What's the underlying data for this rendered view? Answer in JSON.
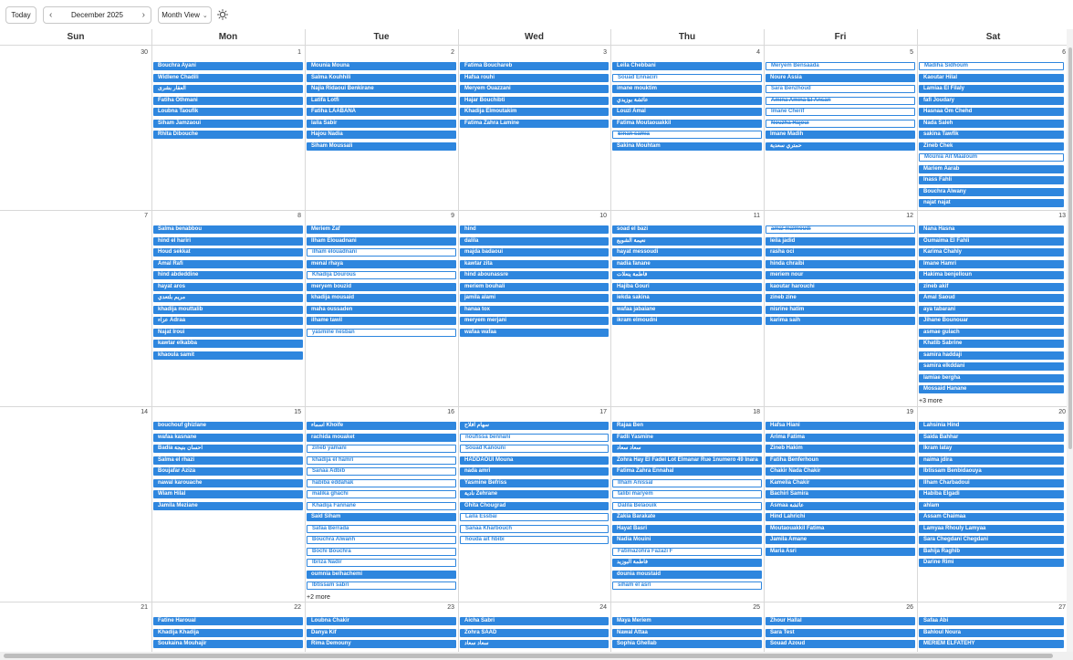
{
  "toolbar": {
    "today_label": "Today",
    "month_label": "December 2025",
    "prev_icon": "chevron-left-icon",
    "next_icon": "chevron-right-icon",
    "view_label": "Month View",
    "view_dropdown_icon": "chevron-down-icon",
    "theme_icon": "sun-icon"
  },
  "colors": {
    "event": "#2e86de",
    "border": "#d8d8d8"
  },
  "weekdays": [
    "Sun",
    "Mon",
    "Tue",
    "Wed",
    "Thu",
    "Fri",
    "Sat"
  ],
  "weeks": [
    {
      "days": [
        {
          "num": "30",
          "events": []
        },
        {
          "num": "1",
          "events": [
            {
              "t": "Bouchra Ayani"
            },
            {
              "t": "Widlene Chadili"
            },
            {
              "t": "العقار بشرى"
            },
            {
              "t": "Fatiha Othmani"
            },
            {
              "t": "Loubna Taoufik"
            },
            {
              "t": "Siham Jamzaoui"
            },
            {
              "t": "Rhita Dibouche"
            }
          ]
        },
        {
          "num": "2",
          "events": [
            {
              "t": "Mounia Mouna"
            },
            {
              "t": "Salma Kouhhili"
            },
            {
              "t": "Najia Ridaoui Benkirane"
            },
            {
              "t": "Latifa Lotfi"
            },
            {
              "t": "Fatiha LAABANA"
            },
            {
              "t": "laila Sabir"
            },
            {
              "t": "Hajou Nadia"
            },
            {
              "t": "Siham Moussali"
            }
          ]
        },
        {
          "num": "3",
          "events": [
            {
              "t": "Fatima Bouchareb"
            },
            {
              "t": "Hafsa rouhi"
            },
            {
              "t": "Meryem  Ouazzani"
            },
            {
              "t": "Hajar Bouchibti"
            },
            {
              "t": "Khadija Elmoutakim"
            },
            {
              "t": "Fatima Zahra Lamine"
            }
          ]
        },
        {
          "num": "4",
          "events": [
            {
              "t": "Leila Chebbani"
            },
            {
              "t": "Souad  Ennaciri",
              "o": 1
            },
            {
              "t": "imane mouktim"
            },
            {
              "t": "عائشة بوزيدي"
            },
            {
              "t": "Louzi Amal"
            },
            {
              "t": "Fatima  Moutaouakkil"
            },
            {
              "t": "Sinan samia",
              "o": 1,
              "s": 1
            },
            {
              "t": "Sakina Mouhtam"
            }
          ]
        },
        {
          "num": "5",
          "events": [
            {
              "t": "Meryem Bensaada",
              "o": 1
            },
            {
              "t": "Noure Assia"
            },
            {
              "t": "Sara Benzhoud",
              "o": 1
            },
            {
              "t": "Amina Amina El Ansari",
              "o": 1,
              "s": 1
            },
            {
              "t": "Imane Cherif",
              "o": 1
            },
            {
              "t": "Nouzha Hajoui",
              "o": 1,
              "s": 1
            },
            {
              "t": "Imane Madih"
            },
            {
              "t": "حمتري سعدية"
            }
          ]
        },
        {
          "num": "6",
          "events": [
            {
              "t": "Madiha Sidhoum",
              "o": 1
            },
            {
              "t": "Kaoutar  Hilal"
            },
            {
              "t": "Lamiaa  El Filaly"
            },
            {
              "t": "fafi Joudary"
            },
            {
              "t": "Hasnaa Om Chehd"
            },
            {
              "t": "Nada Saleh"
            },
            {
              "t": "sakina Tawfik"
            },
            {
              "t": "Zineb Chek"
            },
            {
              "t": "Mounia Ait Maaloum",
              "o": 1
            },
            {
              "t": "Mariem Aarab"
            },
            {
              "t": "Inass Fahli"
            },
            {
              "t": "Bouchra Alwany"
            },
            {
              "t": "najat najat"
            }
          ]
        }
      ]
    },
    {
      "days": [
        {
          "num": "7",
          "events": []
        },
        {
          "num": "8",
          "events": [
            {
              "t": "Salma benabbou"
            },
            {
              "t": "hind el hariri"
            },
            {
              "t": "Houd sekkat"
            },
            {
              "t": "Amal Rafi"
            },
            {
              "t": "hind abdeddine"
            },
            {
              "t": "hayat aros"
            },
            {
              "t": "مريم بلتعدي"
            },
            {
              "t": "khadija mouttalib"
            },
            {
              "t": "عزاء Adraa"
            },
            {
              "t": "Najat Iroui"
            },
            {
              "t": "kawtar elkabba"
            },
            {
              "t": "khaoula samit"
            }
          ]
        },
        {
          "num": "9",
          "events": [
            {
              "t": "Meriem Zaf"
            },
            {
              "t": "Ilham  Elouadnani"
            },
            {
              "t": "ilham elouadnani",
              "o": 1
            },
            {
              "t": "menal rhaya"
            },
            {
              "t": "Khadija Dourous",
              "o": 1
            },
            {
              "t": "meryem bouzid"
            },
            {
              "t": "khadija mousaid"
            },
            {
              "t": "maha oussaden"
            },
            {
              "t": "ilhame tawil"
            },
            {
              "t": "yasmine nesban",
              "o": 1
            }
          ]
        },
        {
          "num": "10",
          "events": [
            {
              "t": "hind"
            },
            {
              "t": "dalila"
            },
            {
              "t": "majda badaoui"
            },
            {
              "t": "kawtar zita"
            },
            {
              "t": "hind abounassre"
            },
            {
              "t": "meriem bouhali"
            },
            {
              "t": "jamila alami"
            },
            {
              "t": "hanaa tox"
            },
            {
              "t": "meryem merjani"
            },
            {
              "t": "wafaa wafaa"
            }
          ]
        },
        {
          "num": "11",
          "events": [
            {
              "t": "soad el bazi"
            },
            {
              "t": "نعيمة الشويع"
            },
            {
              "t": "hayat messoudi"
            },
            {
              "t": "nadia fanane"
            },
            {
              "t": "فاطمة ينعلات"
            },
            {
              "t": "Hajiba Gouri"
            },
            {
              "t": "iekda sakina"
            },
            {
              "t": "wafaa jabaiane"
            },
            {
              "t": "ikram elmoudni"
            }
          ]
        },
        {
          "num": "12",
          "events": [
            {
              "t": "amal malmoudi",
              "o": 1,
              "s": 1
            },
            {
              "t": "leila jadid"
            },
            {
              "t": "rasha oci"
            },
            {
              "t": "hinda chraibi"
            },
            {
              "t": "meriem nour"
            },
            {
              "t": "kaoutar harouchi"
            },
            {
              "t": "zineb zine"
            },
            {
              "t": "nisrine hatim"
            },
            {
              "t": "karima saih"
            }
          ]
        },
        {
          "num": "13",
          "events": [
            {
              "t": "Nana Hasna"
            },
            {
              "t": "Oumaima El Fahli"
            },
            {
              "t": "Karima  Chahly"
            },
            {
              "t": "Imane Hamri"
            },
            {
              "t": "Hakima benjelloun"
            },
            {
              "t": "zineb akif"
            },
            {
              "t": "Amal Saoud"
            },
            {
              "t": "aya tabarani"
            },
            {
              "t": "Jihane  Bounouar"
            },
            {
              "t": "asmae gulach"
            },
            {
              "t": "Khatib Sabrine"
            },
            {
              "t": "samira haddaji"
            },
            {
              "t": "samira elkddani"
            },
            {
              "t": "lamiae bergha"
            },
            {
              "t": "Mossaid Hanane"
            }
          ],
          "more": "+3 more"
        }
      ]
    },
    {
      "days": [
        {
          "num": "14",
          "events": []
        },
        {
          "num": "15",
          "events": [
            {
              "t": "bouchouf ghizlane"
            },
            {
              "t": "wafaa kasnane"
            },
            {
              "t": "Badia  احسان بنيجة"
            },
            {
              "t": "Salma el rhazi"
            },
            {
              "t": "Boujafar Aziza"
            },
            {
              "t": "nawal karouache"
            },
            {
              "t": "Wiam Hilal"
            },
            {
              "t": "Jamila Meziane"
            }
          ]
        },
        {
          "num": "16",
          "events": [
            {
              "t": "اسماء Khoife"
            },
            {
              "t": "rachida mouaket"
            },
            {
              "t": "zineb yamani",
              "o": 1
            },
            {
              "t": "khadija el hamri",
              "o": 1
            },
            {
              "t": "Sanaa Adbib",
              "o": 1
            },
            {
              "t": "habiba eddahak",
              "o": 1
            },
            {
              "t": "malika ghachi",
              "o": 1
            },
            {
              "t": "Khadija Fannane",
              "o": 1
            },
            {
              "t": "Said  Siham"
            },
            {
              "t": "Safaa  Berrada",
              "o": 1
            },
            {
              "t": "Bouchra Alwanh",
              "o": 1
            },
            {
              "t": "Bochi Bouchra",
              "o": 1
            },
            {
              "t": "Ibriza Nadir",
              "o": 1
            },
            {
              "t": "oumnia belhachemi"
            },
            {
              "t": "Ibtissam sabri",
              "o": 1
            }
          ],
          "more": "+2 more"
        },
        {
          "num": "17",
          "events": [
            {
              "t": "سهام افلاح"
            },
            {
              "t": "noufissa bennani",
              "o": 1
            },
            {
              "t": "Souad Kanouni",
              "o": 1
            },
            {
              "t": "HADDAOUI Mouna"
            },
            {
              "t": "nada amri"
            },
            {
              "t": "Yasmine Befriss"
            },
            {
              "t": "نادية  Zehrane"
            },
            {
              "t": "Ghita Chougrad"
            },
            {
              "t": "Laila Essbai",
              "o": 1
            },
            {
              "t": "Sanaa Kharbouch",
              "o": 1
            },
            {
              "t": "houda ait hbibi",
              "o": 1
            }
          ]
        },
        {
          "num": "18",
          "events": [
            {
              "t": "Rajaa Ben"
            },
            {
              "t": "Fadli Yasmine"
            },
            {
              "t": "سعاد سعاد"
            },
            {
              "t": "Zohra Hay El Fadel Lot Elmanar Rue 1numero 49 Inara"
            },
            {
              "t": "Fatima Zahra Ennahal"
            },
            {
              "t": "Ilham Anissal",
              "o": 1
            },
            {
              "t": "talibi maryem",
              "o": 1
            },
            {
              "t": "Dalila Belaouik",
              "o": 1
            },
            {
              "t": "Zakia  Barakate"
            },
            {
              "t": "Hayat Basri"
            },
            {
              "t": "Nadia Mouini"
            },
            {
              "t": "Fatimazohra Fazazi F",
              "o": 1
            },
            {
              "t": "فاطمة البوزيد"
            },
            {
              "t": "dounia moustaid"
            },
            {
              "t": "siham el asri",
              "o": 1
            }
          ]
        },
        {
          "num": "19",
          "events": [
            {
              "t": "Hafsa Hiani"
            },
            {
              "t": "Arima Fatima"
            },
            {
              "t": "Zineb Hakim"
            },
            {
              "t": "Fatiha Benferhoun"
            },
            {
              "t": "Chakir Nada Chakir"
            },
            {
              "t": "Kamelia Chakir"
            },
            {
              "t": "Bachiri Samira"
            },
            {
              "t": "Asmaa عائشة"
            },
            {
              "t": "Hind Lahrichi"
            },
            {
              "t": "Moutaouakkil Fatima"
            },
            {
              "t": "Jamila Amane"
            },
            {
              "t": "Maria Asri"
            }
          ]
        },
        {
          "num": "20",
          "events": [
            {
              "t": "Lahsinia Hind"
            },
            {
              "t": "Saida Bahhar"
            },
            {
              "t": "Ikram latay"
            },
            {
              "t": "naima jdira"
            },
            {
              "t": "Ibtissam  Benbidaouya"
            },
            {
              "t": "Ilham Charbadoui"
            },
            {
              "t": "Habiba  Elgadi"
            },
            {
              "t": "ahlam"
            },
            {
              "t": "Assam Chaimaa"
            },
            {
              "t": "Lamyaa Rhouly Lamyaa"
            },
            {
              "t": "Sara Chegdani Chegdani"
            },
            {
              "t": "Bahija Raghib"
            },
            {
              "t": "Darine  Rimi"
            }
          ]
        }
      ]
    },
    {
      "days": [
        {
          "num": "21",
          "events": []
        },
        {
          "num": "22",
          "events": [
            {
              "t": "Fatine Haroual"
            },
            {
              "t": "Khadija  Khadija"
            },
            {
              "t": "Soukaina Mouhajir"
            }
          ]
        },
        {
          "num": "23",
          "events": [
            {
              "t": "Loubna Chakir"
            },
            {
              "t": "Danya Kif"
            },
            {
              "t": "Rima Demouny"
            }
          ]
        },
        {
          "num": "24",
          "events": [
            {
              "t": "Aicha Sabri"
            },
            {
              "t": "Zohra SAAD"
            },
            {
              "t": "سعاد سعاد"
            }
          ]
        },
        {
          "num": "25",
          "events": [
            {
              "t": "Maya Meriem"
            },
            {
              "t": "Nawal Attaa"
            },
            {
              "t": "Sophia Ghellab"
            }
          ]
        },
        {
          "num": "26",
          "events": [
            {
              "t": "Zhour Hallal"
            },
            {
              "t": "Sara Test"
            },
            {
              "t": "Souad Azoud"
            }
          ]
        },
        {
          "num": "27",
          "events": [
            {
              "t": "Safaa Abi"
            },
            {
              "t": "Bahloul Noura"
            },
            {
              "t": "MERIEM ELFATEHY"
            }
          ]
        }
      ]
    }
  ]
}
